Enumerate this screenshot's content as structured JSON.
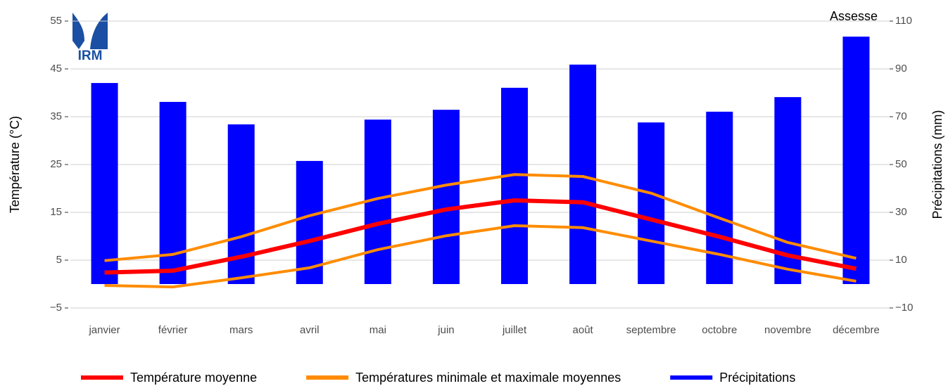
{
  "chart_data": {
    "type": "bar-line",
    "title": "Assesse",
    "logo": "IRM",
    "y_label": "Température (°C)",
    "y2_label": "Précipitations (mm)",
    "categories": [
      "janvier",
      "février",
      "mars",
      "avril",
      "mai",
      "juin",
      "juillet",
      "août",
      "septembre",
      "octobre",
      "novembre",
      "décembre"
    ],
    "ylim": [
      -5,
      55
    ],
    "yticks": [
      {
        "value": -5,
        "label": "−5"
      },
      5,
      15,
      25,
      35,
      45,
      55
    ],
    "y2lim": [
      -10,
      110
    ],
    "y2ticks": [
      {
        "value": -10,
        "label": "−10"
      },
      10,
      30,
      50,
      70,
      90,
      110
    ],
    "grid": true,
    "legend": "bottom",
    "series": [
      {
        "name": "Température moyenne",
        "type": "line",
        "color": "#ff0000",
        "values": [
          2.4,
          2.8,
          5.7,
          9.0,
          12.6,
          15.6,
          17.5,
          17.1,
          13.5,
          9.9,
          6.0,
          3.2
        ]
      },
      {
        "name": "Températures minimale et maximale moyennes",
        "type": "range",
        "color": "#ff8c00",
        "high": [
          4.9,
          6.2,
          9.9,
          14.3,
          17.9,
          20.7,
          22.9,
          22.5,
          19.0,
          13.8,
          8.7,
          5.4
        ],
        "low": [
          -0.3,
          -0.6,
          1.3,
          3.4,
          7.2,
          10.1,
          12.2,
          11.8,
          9.0,
          6.2,
          3.1,
          0.6
        ]
      },
      {
        "name": "Précipitations",
        "type": "bar",
        "axis": "y2",
        "color": "#0000ff",
        "values": [
          84.1,
          76.2,
          66.8,
          51.5,
          68.8,
          72.9,
          82.1,
          91.8,
          67.6,
          72.1,
          78.2,
          103.5
        ]
      }
    ]
  }
}
